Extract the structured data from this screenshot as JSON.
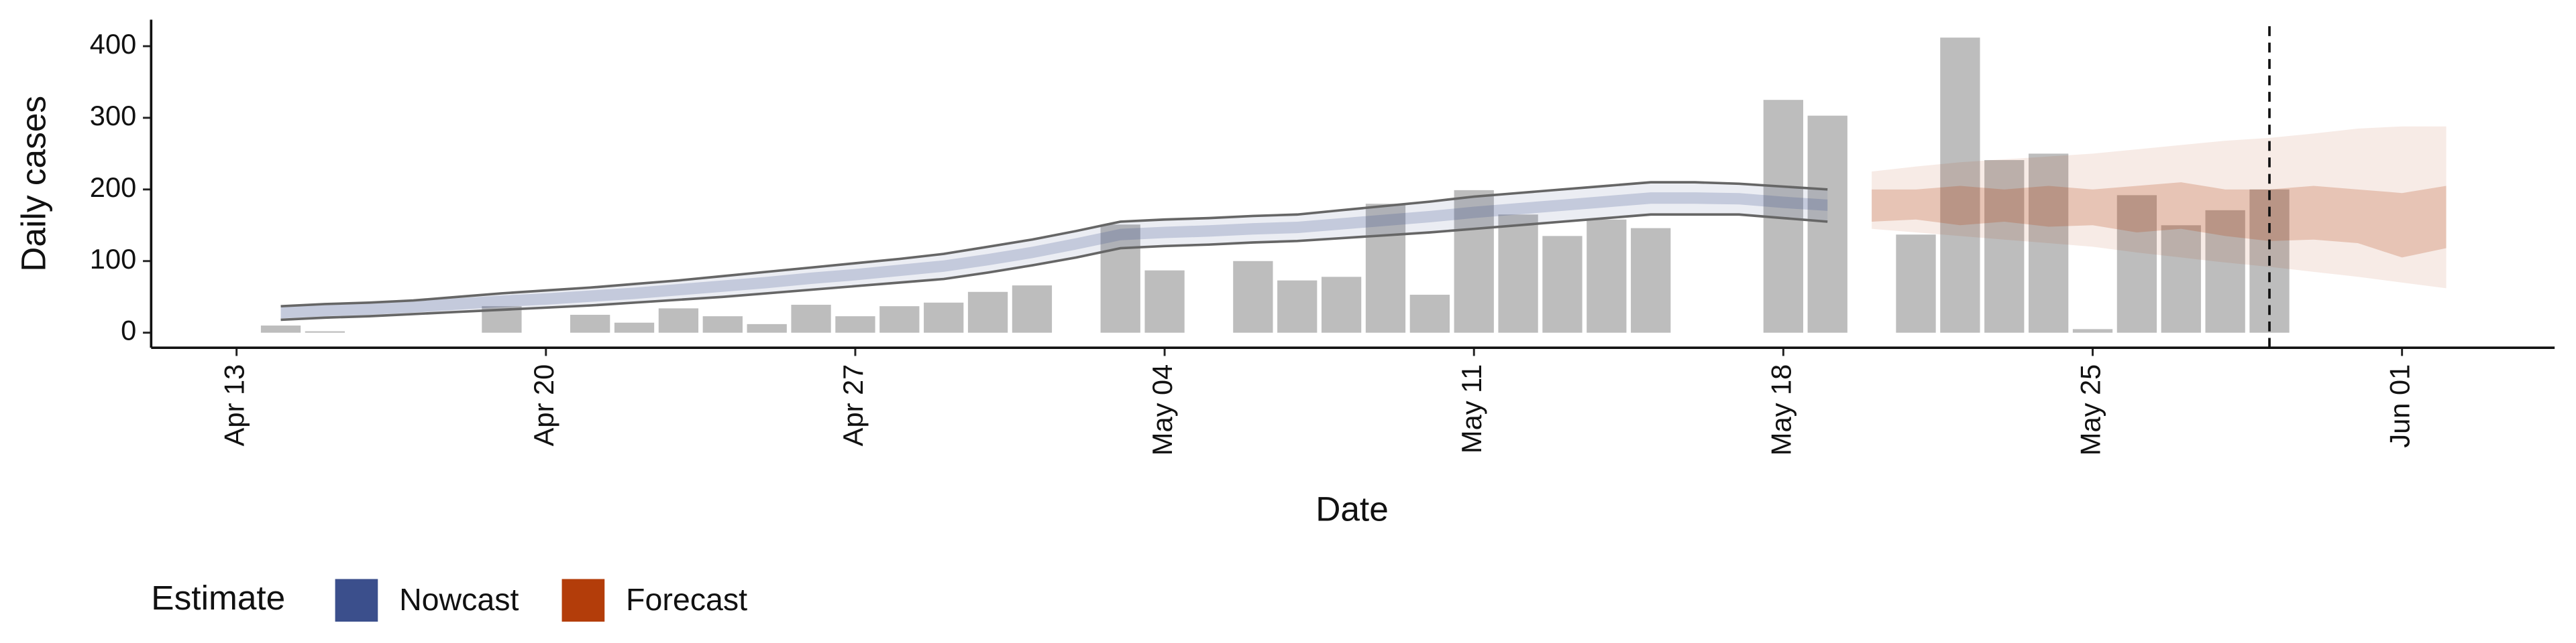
{
  "chart_data": {
    "type": "bar",
    "xlabel": "Date",
    "ylabel": "Daily cases",
    "color": "#bdbdbd",
    "categories": [
      "Apr 13",
      null,
      null,
      null,
      null,
      null,
      null,
      "Apr 20",
      null,
      null,
      null,
      null,
      null,
      null,
      "Apr 27",
      null,
      null,
      null,
      null,
      null,
      null,
      "May 04",
      null,
      null,
      null,
      null,
      null,
      null,
      "May 11",
      null,
      null,
      null,
      null,
      null,
      null,
      "May 18",
      null,
      null,
      null,
      null,
      null,
      null,
      "May 25",
      null,
      null,
      null,
      null,
      null,
      null,
      "Jun 01",
      null
    ],
    "values": [
      null,
      10,
      2,
      null,
      null,
      null,
      37,
      null,
      25,
      14,
      34,
      23,
      12,
      39,
      23,
      37,
      42,
      57,
      66,
      null,
      151,
      87,
      null,
      100,
      73,
      78,
      180,
      53,
      199,
      165,
      135,
      158,
      146,
      null,
      null,
      325,
      303,
      null,
      137,
      412,
      241,
      250,
      5,
      192,
      150,
      171,
      200,
      null,
      null,
      null,
      null
    ],
    "ylim": [
      -21,
      437
    ],
    "yticks": [
      0,
      100,
      200,
      300,
      400
    ],
    "legend_title": "Estimate",
    "bands": [
      {
        "name": "Nowcast",
        "color": "#3b4f8c",
        "outline": true,
        "lower90": [
          null,
          18,
          21,
          23,
          26,
          29,
          32,
          35,
          38,
          42,
          46,
          50,
          55,
          60,
          65,
          70,
          75,
          84,
          94,
          105,
          118,
          121,
          123,
          126,
          128,
          132,
          136,
          140,
          145,
          150,
          155,
          160,
          165,
          165,
          165,
          160,
          155,
          null,
          null,
          null,
          null,
          null,
          null,
          null,
          null,
          null,
          null,
          null,
          null,
          null,
          null
        ],
        "upper90": [
          null,
          37,
          40,
          42,
          45,
          50,
          55,
          59,
          63,
          68,
          73,
          79,
          85,
          91,
          97,
          103,
          110,
          120,
          130,
          142,
          155,
          158,
          160,
          163,
          165,
          171,
          177,
          183,
          190,
          195,
          200,
          205,
          210,
          210,
          208,
          204,
          200,
          null,
          null,
          null,
          null,
          null,
          null,
          null,
          null,
          null,
          null,
          null,
          null,
          null,
          null
        ],
        "lower50": [
          null,
          20,
          23,
          25,
          28,
          32,
          36,
          39,
          43,
          47,
          52,
          57,
          62,
          68,
          73,
          79,
          85,
          94,
          104,
          116,
          129,
          132,
          134,
          137,
          139,
          144,
          149,
          154,
          160,
          165,
          170,
          175,
          180,
          180,
          179,
          174,
          170,
          null,
          null,
          null,
          null,
          null,
          null,
          null,
          null,
          null,
          null,
          null,
          null,
          null,
          null
        ],
        "upper50": [
          null,
          36,
          39,
          41,
          44,
          48,
          52,
          55,
          59,
          63,
          68,
          73,
          78,
          84,
          89,
          95,
          101,
          110,
          120,
          132,
          145,
          148,
          150,
          153,
          155,
          160,
          165,
          170,
          176,
          181,
          186,
          191,
          196,
          196,
          195,
          190,
          186,
          null,
          null,
          null,
          null,
          null,
          null,
          null,
          null,
          null,
          null,
          null,
          null,
          null,
          null
        ]
      },
      {
        "name": "Forecast",
        "color": "#b33d0a",
        "outline": false,
        "lower90": [
          null,
          null,
          null,
          null,
          null,
          null,
          null,
          null,
          null,
          null,
          null,
          null,
          null,
          null,
          null,
          null,
          null,
          null,
          null,
          null,
          null,
          null,
          null,
          null,
          null,
          null,
          null,
          null,
          null,
          null,
          null,
          null,
          null,
          null,
          null,
          null,
          null,
          145,
          140,
          135,
          130,
          125,
          120,
          112,
          105,
          98,
          92,
          85,
          78,
          70,
          62
        ],
        "upper90": [
          null,
          null,
          null,
          null,
          null,
          null,
          null,
          null,
          null,
          null,
          null,
          null,
          null,
          null,
          null,
          null,
          null,
          null,
          null,
          null,
          null,
          null,
          null,
          null,
          null,
          null,
          null,
          null,
          null,
          null,
          null,
          null,
          null,
          null,
          null,
          null,
          null,
          225,
          232,
          238,
          242,
          246,
          250,
          256,
          262,
          268,
          272,
          278,
          285,
          288,
          288
        ],
        "lower50": [
          null,
          null,
          null,
          null,
          null,
          null,
          null,
          null,
          null,
          null,
          null,
          null,
          null,
          null,
          null,
          null,
          null,
          null,
          null,
          null,
          null,
          null,
          null,
          null,
          null,
          null,
          null,
          null,
          null,
          null,
          null,
          null,
          null,
          null,
          null,
          null,
          null,
          155,
          158,
          150,
          155,
          148,
          150,
          140,
          145,
          135,
          128,
          130,
          125,
          105,
          118
        ],
        "upper50": [
          null,
          null,
          null,
          null,
          null,
          null,
          null,
          null,
          null,
          null,
          null,
          null,
          null,
          null,
          null,
          null,
          null,
          null,
          null,
          null,
          null,
          null,
          null,
          null,
          null,
          null,
          null,
          null,
          null,
          null,
          null,
          null,
          null,
          null,
          null,
          null,
          null,
          200,
          200,
          205,
          200,
          205,
          200,
          205,
          210,
          200,
          200,
          205,
          200,
          195,
          205
        ]
      }
    ]
  }
}
